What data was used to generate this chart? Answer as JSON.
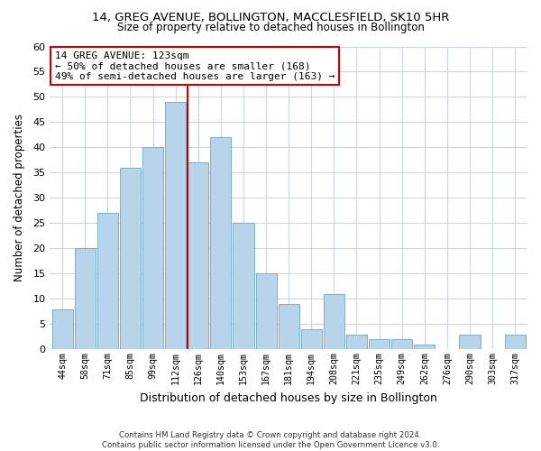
{
  "title": "14, GREG AVENUE, BOLLINGTON, MACCLESFIELD, SK10 5HR",
  "subtitle": "Size of property relative to detached houses in Bollington",
  "xlabel": "Distribution of detached houses by size in Bollington",
  "ylabel": "Number of detached properties",
  "bar_labels": [
    "44sqm",
    "58sqm",
    "71sqm",
    "85sqm",
    "99sqm",
    "112sqm",
    "126sqm",
    "140sqm",
    "153sqm",
    "167sqm",
    "181sqm",
    "194sqm",
    "208sqm",
    "221sqm",
    "235sqm",
    "249sqm",
    "262sqm",
    "276sqm",
    "290sqm",
    "303sqm",
    "317sqm"
  ],
  "bar_values": [
    8,
    20,
    27,
    36,
    40,
    49,
    37,
    42,
    25,
    15,
    9,
    4,
    11,
    3,
    2,
    2,
    1,
    0,
    3,
    0,
    3
  ],
  "bar_color": "#b8d4ea",
  "bar_edge_color": "#7aafc8",
  "highlight_index": 6,
  "highlight_line_color": "#cc0000",
  "ylim": [
    0,
    60
  ],
  "yticks": [
    0,
    5,
    10,
    15,
    20,
    25,
    30,
    35,
    40,
    45,
    50,
    55,
    60
  ],
  "annotation_title": "14 GREG AVENUE: 123sqm",
  "annotation_line1": "← 50% of detached houses are smaller (168)",
  "annotation_line2": "49% of semi-detached houses are larger (163) →",
  "annotation_box_color": "#ffffff",
  "annotation_box_edge": "#cc0000",
  "footer_line1": "Contains HM Land Registry data © Crown copyright and database right 2024.",
  "footer_line2": "Contains public sector information licensed under the Open Government Licence v3.0.",
  "background_color": "#ffffff",
  "grid_color": "#c8d8ea"
}
